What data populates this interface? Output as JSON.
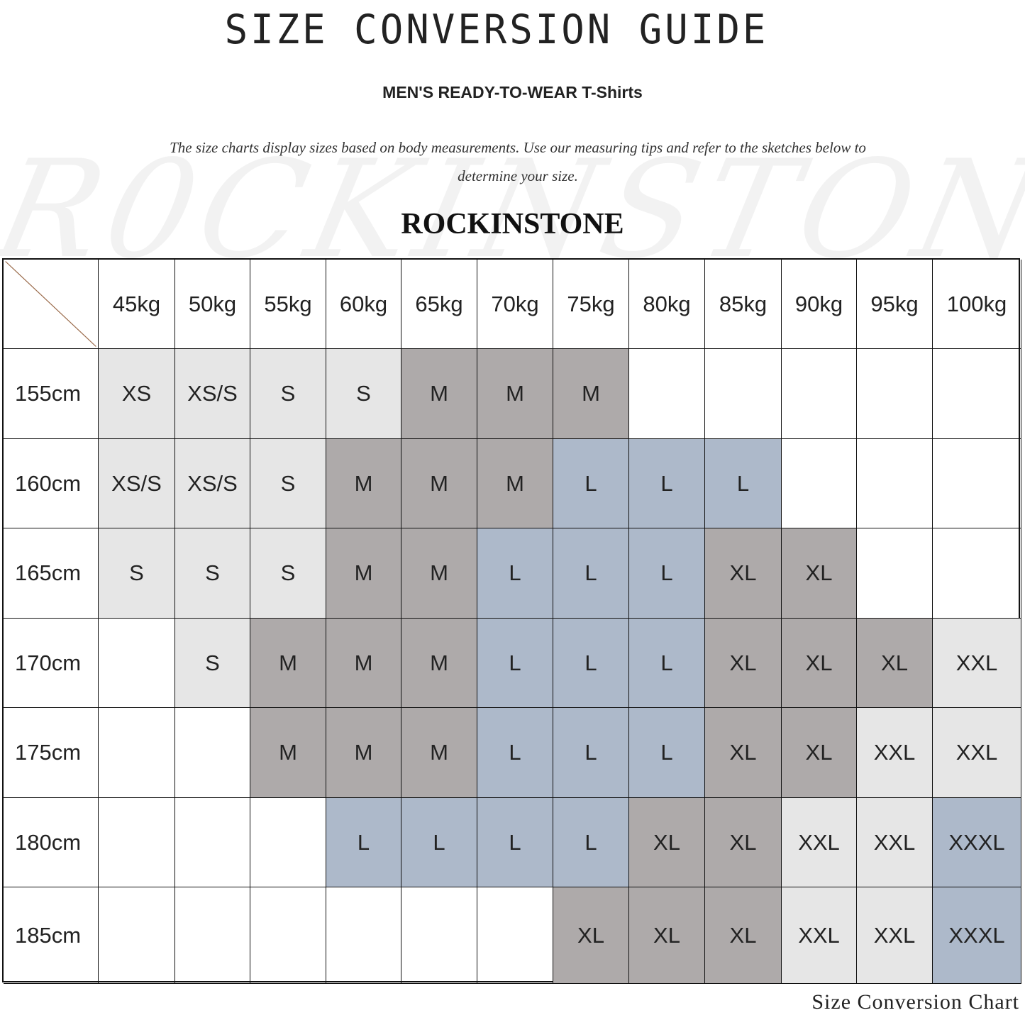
{
  "title": "SIZE CONVERSION GUIDE",
  "subtitle": "MEN'S READY-TO-WEAR T-Shirts",
  "description": "The size charts display sizes based on body measurements. Use our measuring tips and refer to the sketches below to determine your size.",
  "watermark": "ROCKINSTONE",
  "brand": "ROCKINSTONE",
  "footer": "Size Conversion Chart",
  "size_colors": {
    "XS": "#e6e6e6",
    "XS/S": "#e6e6e6",
    "S": "#e6e6e6",
    "M": "#aeaaaa",
    "L": "#adb9ca",
    "XL": "#aeaaaa",
    "XXL": "#e6e6e6",
    "XXXL": "#adb9ca"
  },
  "table": {
    "columns": [
      "45kg",
      "50kg",
      "55kg",
      "60kg",
      "65kg",
      "70kg",
      "75kg",
      "80kg",
      "85kg",
      "90kg",
      "95kg",
      "100kg"
    ],
    "rows": [
      {
        "height": "155cm",
        "sizes": [
          "XS",
          "XS/S",
          "S",
          "S",
          "M",
          "M",
          "M",
          "",
          "",
          "",
          "",
          ""
        ]
      },
      {
        "height": "160cm",
        "sizes": [
          "XS/S",
          "XS/S",
          "S",
          "M",
          "M",
          "M",
          "L",
          "L",
          "L",
          "",
          "",
          ""
        ]
      },
      {
        "height": "165cm",
        "sizes": [
          "S",
          "S",
          "S",
          "M",
          "M",
          "L",
          "L",
          "L",
          "XL",
          "XL",
          "",
          ""
        ]
      },
      {
        "height": "170cm",
        "sizes": [
          "",
          "S",
          "M",
          "M",
          "M",
          "L",
          "L",
          "L",
          "XL",
          "XL",
          "XL",
          "XXL"
        ]
      },
      {
        "height": "175cm",
        "sizes": [
          "",
          "",
          "M",
          "M",
          "M",
          "L",
          "L",
          "L",
          "XL",
          "XL",
          "XXL",
          "XXL"
        ]
      },
      {
        "height": "180cm",
        "sizes": [
          "",
          "",
          "",
          "L",
          "L",
          "L",
          "L",
          "XL",
          "XL",
          "XXL",
          "XXL",
          "XXXL"
        ]
      },
      {
        "height": "185cm",
        "sizes": [
          "",
          "",
          "",
          "",
          "",
          "",
          "XL",
          "XL",
          "XL",
          "XXL",
          "XXL",
          "XXXL"
        ]
      }
    ]
  }
}
